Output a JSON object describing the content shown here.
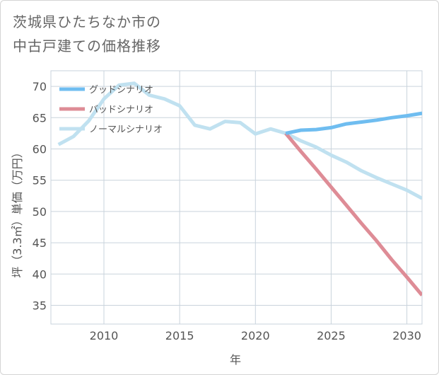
{
  "title_line1": "茨城県ひたちなか市の",
  "title_line2": "中古戸建ての価格推移",
  "chart_data": {
    "type": "line",
    "xlabel": "年",
    "ylabel": "坪（3.3㎡）単価（万円）",
    "xlim": [
      2006.5,
      2031
    ],
    "ylim": [
      32,
      72.5
    ],
    "xticks": [
      2010,
      2015,
      2020,
      2025,
      2030
    ],
    "yticks": [
      35,
      40,
      45,
      50,
      55,
      60,
      65,
      70
    ],
    "grid": true,
    "legend_position": "top-left",
    "series": [
      {
        "name": "グッドシナリオ",
        "color": "#6fbdf0",
        "x": [
          2022,
          2023,
          2024,
          2025,
          2026,
          2027,
          2028,
          2029,
          2030,
          2031
        ],
        "y": [
          62.5,
          63.0,
          63.1,
          63.4,
          64.0,
          64.3,
          64.6,
          65.0,
          65.3,
          65.7
        ]
      },
      {
        "name": "バッドシナリオ",
        "color": "#de8c96",
        "x": [
          2022,
          2023,
          2024,
          2025,
          2026,
          2027,
          2028,
          2029,
          2030,
          2031
        ],
        "y": [
          62.5,
          59.6,
          56.8,
          53.9,
          51.0,
          48.1,
          45.3,
          42.3,
          39.5,
          36.6
        ]
      },
      {
        "name": "ノーマルシナリオ",
        "color": "#c0e1f0",
        "x": [
          2007,
          2008,
          2009,
          2010,
          2011,
          2012,
          2013,
          2014,
          2015,
          2016,
          2017,
          2018,
          2019,
          2020,
          2021,
          2022,
          2023,
          2024,
          2025,
          2026,
          2027,
          2028,
          2029,
          2030,
          2031
        ],
        "y": [
          60.7,
          62.0,
          64.5,
          68.0,
          70.2,
          70.5,
          68.6,
          68.0,
          66.9,
          63.8,
          63.2,
          64.4,
          64.2,
          62.4,
          63.2,
          62.5,
          61.3,
          60.3,
          59.0,
          57.9,
          56.5,
          55.4,
          54.4,
          53.4,
          52.1
        ]
      }
    ]
  }
}
